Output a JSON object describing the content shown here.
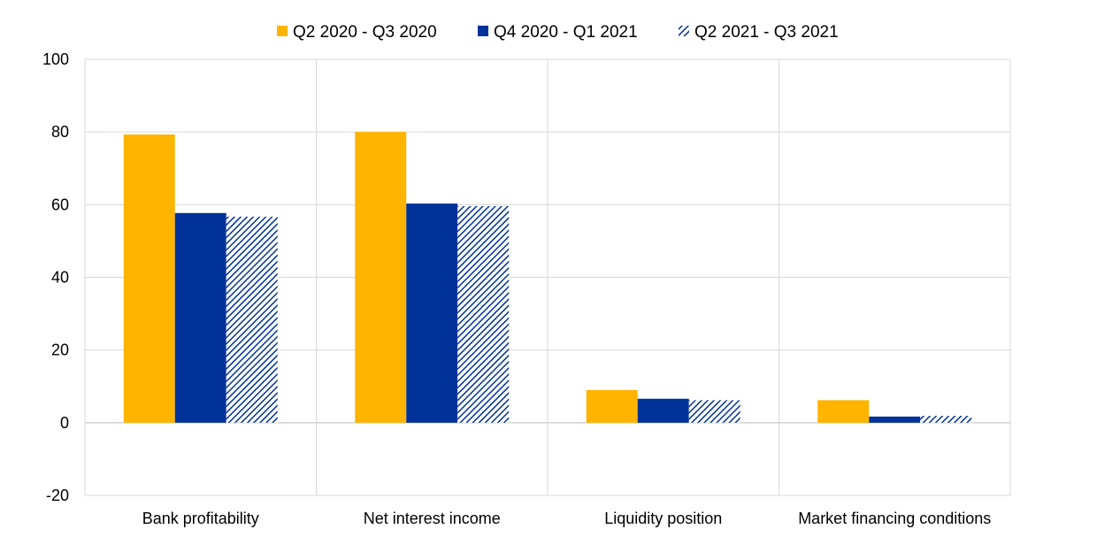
{
  "chart_data": {
    "type": "bar",
    "categories": [
      "Bank profitability",
      "Net interest income",
      "Liquidity position",
      "Market financing conditions"
    ],
    "series": [
      {
        "name": "Q2 2020 - Q3 2020",
        "values": [
          79.3,
          80.0,
          9.0,
          6.2
        ],
        "color": "#FFB400",
        "pattern": "solid"
      },
      {
        "name": "Q4 2020 - Q1 2021",
        "values": [
          57.7,
          60.3,
          6.6,
          1.7
        ],
        "color": "#003299",
        "pattern": "solid"
      },
      {
        "name": "Q2 2021 - Q3 2021",
        "values": [
          56.7,
          59.6,
          6.2,
          1.9
        ],
        "color": "#003299",
        "pattern": "diagonal-hatch"
      }
    ],
    "ylim": [
      -20,
      100
    ],
    "yticks": [
      -20,
      0,
      20,
      40,
      60,
      80,
      100
    ],
    "ytick_labels": [
      "-20",
      "0",
      "20",
      "40",
      "60",
      "80",
      "100"
    ],
    "grid": true,
    "legend_position": "top-center",
    "title": "",
    "xlabel": "",
    "ylabel": ""
  }
}
